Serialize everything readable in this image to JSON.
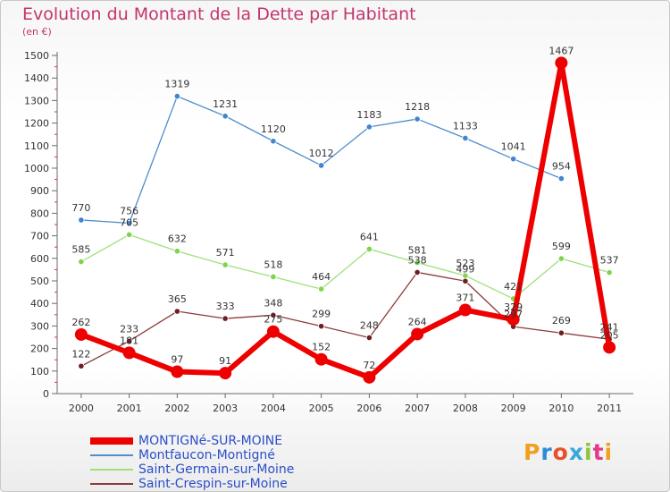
{
  "chart_data": {
    "type": "line",
    "title": "Evolution du Montant de la Dette par Habitant",
    "unit_label": "(en €)",
    "xlabel": "",
    "ylabel": "",
    "x": [
      "2000",
      "2001",
      "2002",
      "2003",
      "2004",
      "2005",
      "2006",
      "2007",
      "2008",
      "2009",
      "2010",
      "2011"
    ],
    "ylim": [
      0,
      1500
    ],
    "yticks": [
      0,
      100,
      200,
      300,
      400,
      500,
      600,
      700,
      800,
      900,
      1000,
      1100,
      1200,
      1300,
      1400,
      1500
    ],
    "grid": false,
    "legend": "bottom-left",
    "series": [
      {
        "name": "Montfaucon-Montigné",
        "color": "#4f8ecb",
        "point_color": "#3f86cc",
        "values": [
          770,
          756,
          1319,
          1231,
          1120,
          1012,
          1183,
          1218,
          1133,
          1041,
          954,
          null
        ]
      },
      {
        "name": "Saint-Germain-sur-Moine",
        "color": "#9ee07a",
        "point_color": "#7fd34e",
        "values": [
          585,
          705,
          632,
          571,
          518,
          464,
          641,
          581,
          523,
          421,
          599,
          537
        ]
      },
      {
        "name": "Saint-Crespin-sur-Moine",
        "color": "#8c3a3a",
        "point_color": "#6e1f1f",
        "values": [
          122,
          233,
          365,
          333,
          348,
          299,
          248,
          538,
          499,
          297,
          269,
          241
        ]
      },
      {
        "name": "MONTIGNé-SUR-MOINE",
        "color": "#ee0000",
        "point_color": "#ee0000",
        "values": [
          262,
          181,
          97,
          91,
          275,
          152,
          72,
          264,
          371,
          329,
          1467,
          205
        ]
      }
    ]
  },
  "legend": {
    "items": [
      {
        "label": "MONTIGNé-SUR-MOINE",
        "color": "#ee0000",
        "thick": true
      },
      {
        "label": "Montfaucon-Montigné",
        "color": "#4f8ecb"
      },
      {
        "label": "Saint-Germain-sur-Moine",
        "color": "#9ee07a"
      },
      {
        "label": "Saint-Crespin-sur-Moine",
        "color": "#8c3a3a"
      }
    ]
  },
  "logo": {
    "text": "Proxiti",
    "letter_colors": [
      "#f0a020",
      "#2e8bd8",
      "#e8502a",
      "#3aa8d8",
      "#8cc63f",
      "#e23a8a",
      "#f0a020"
    ]
  }
}
